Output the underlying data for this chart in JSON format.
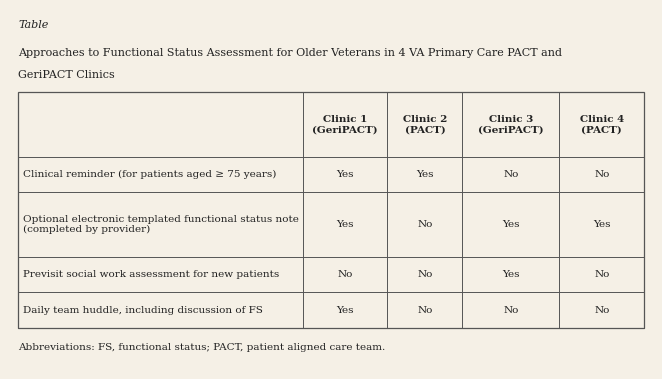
{
  "background_color": "#f5f0e6",
  "title_label": "Table",
  "subtitle_line1": "Approaches to Functional Status Assessment for Older Veterans in 4 VA Primary Care PACT and",
  "subtitle_line2": "GeriPACT Clinics",
  "col_headers": [
    "",
    "Clinic 1\n(GeriPACT)",
    "Clinic 2\n(PACT)",
    "Clinic 3\n(GeriPACT)",
    "Clinic 4\n(PACT)"
  ],
  "rows": [
    [
      "Clinical reminder (for patients aged ≥ 75 years)",
      "Yes",
      "Yes",
      "No",
      "No"
    ],
    [
      "Optional electronic templated functional status note\n(completed by provider)",
      "Yes",
      "No",
      "Yes",
      "Yes"
    ],
    [
      "Previsit social work assessment for new patients",
      "No",
      "No",
      "Yes",
      "No"
    ],
    [
      "Daily team huddle, including discussion of FS",
      "Yes",
      "No",
      "No",
      "No"
    ]
  ],
  "abbreviation": "Abbreviations: FS, functional status; PACT, patient aligned care team.",
  "font_size": 7.5,
  "header_font_size": 7.5,
  "title_font_size": 8,
  "subtitle_font_size": 8
}
